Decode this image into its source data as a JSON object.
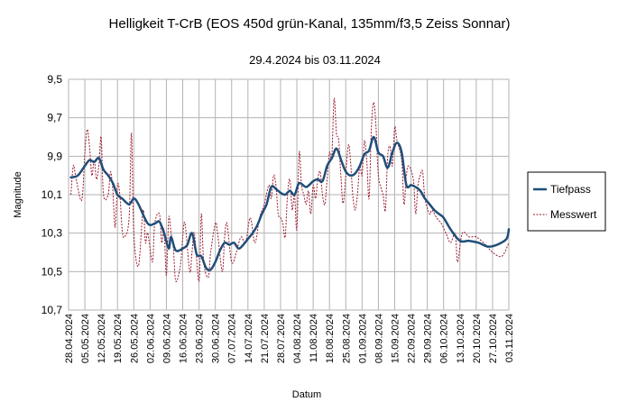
{
  "chart_data": {
    "type": "line",
    "title": "Helligkeit T-CrB (EOS 450d grün-Kanal, 135mm/f3,5 Zeiss Sonnar)",
    "subtitle": "29.4.2024 bis 03.11.2024",
    "xlabel": "Datum",
    "ylabel": "Magnitude",
    "y_reversed": true,
    "ylim": [
      9.5,
      10.7
    ],
    "y_ticks": [
      "9,5",
      "9,7",
      "9,9",
      "10,1",
      "10,3",
      "10,5",
      "10,7"
    ],
    "x_ticks": [
      "28.04.2024",
      "05.05.2024",
      "12.05.2024",
      "19.05.2024",
      "26.05.2024",
      "02.06.2024",
      "09.06.2024",
      "16.06.2024",
      "23.06.2024",
      "30.06.2024",
      "07.07.2024",
      "14.07.2024",
      "21.07.2024",
      "28.07.2024",
      "04.08.2024",
      "11.08.2024",
      "18.08.2024",
      "25.08.2024",
      "01.09.2024",
      "08.09.2024",
      "15.09.2024",
      "22.09.2024",
      "29.09.2024",
      "06.10.2024",
      "13.10.2024",
      "20.10.2024",
      "27.10.2024",
      "03.11.2024"
    ],
    "grid": true,
    "legend_position": "right",
    "series": [
      {
        "name": "Tiefpass",
        "color": "#1f4e79",
        "style": "solid",
        "x": [
          "2024-04-29",
          "2024-05-02",
          "2024-05-05",
          "2024-05-07",
          "2024-05-09",
          "2024-05-11",
          "2024-05-13",
          "2024-05-15",
          "2024-05-17",
          "2024-05-19",
          "2024-05-21",
          "2024-05-24",
          "2024-05-26",
          "2024-05-28",
          "2024-06-01",
          "2024-06-04",
          "2024-06-06",
          "2024-06-08",
          "2024-06-10",
          "2024-06-11",
          "2024-06-13",
          "2024-06-16",
          "2024-06-18",
          "2024-06-20",
          "2024-06-22",
          "2024-06-24",
          "2024-06-26",
          "2024-06-28",
          "2024-06-30",
          "2024-07-02",
          "2024-07-04",
          "2024-07-06",
          "2024-07-08",
          "2024-07-10",
          "2024-07-12",
          "2024-07-14",
          "2024-07-16",
          "2024-07-18",
          "2024-07-20",
          "2024-07-22",
          "2024-07-24",
          "2024-07-26",
          "2024-07-28",
          "2024-07-30",
          "2024-08-01",
          "2024-08-03",
          "2024-08-05",
          "2024-08-08",
          "2024-08-11",
          "2024-08-13",
          "2024-08-15",
          "2024-08-17",
          "2024-08-19",
          "2024-08-21",
          "2024-08-23",
          "2024-08-25",
          "2024-08-27",
          "2024-08-29",
          "2024-08-31",
          "2024-09-02",
          "2024-09-04",
          "2024-09-06",
          "2024-09-08",
          "2024-09-10",
          "2024-09-12",
          "2024-09-14",
          "2024-09-16",
          "2024-09-18",
          "2024-09-20",
          "2024-09-22",
          "2024-09-24",
          "2024-09-26",
          "2024-09-28",
          "2024-09-30",
          "2024-10-02",
          "2024-10-04",
          "2024-10-06",
          "2024-10-09",
          "2024-10-13",
          "2024-10-17",
          "2024-10-21",
          "2024-10-25",
          "2024-10-29",
          "2024-11-02",
          "2024-11-03"
        ],
        "y": [
          10.01,
          10.0,
          9.95,
          9.92,
          9.93,
          9.91,
          9.97,
          10.0,
          10.04,
          10.1,
          10.12,
          10.15,
          10.12,
          10.15,
          10.25,
          10.25,
          10.24,
          10.3,
          10.38,
          10.32,
          10.39,
          10.38,
          10.36,
          10.3,
          10.41,
          10.42,
          10.48,
          10.49,
          10.45,
          10.39,
          10.35,
          10.36,
          10.35,
          10.38,
          10.36,
          10.33,
          10.3,
          10.26,
          10.2,
          10.15,
          10.06,
          10.07,
          10.09,
          10.1,
          10.08,
          10.1,
          10.04,
          10.06,
          10.03,
          10.02,
          10.03,
          9.95,
          9.91,
          9.86,
          9.92,
          9.98,
          10.0,
          9.99,
          9.95,
          9.89,
          9.87,
          9.8,
          9.88,
          9.9,
          9.96,
          9.88,
          9.83,
          9.88,
          10.05,
          10.05,
          10.06,
          10.08,
          10.12,
          10.15,
          10.18,
          10.2,
          10.22,
          10.28,
          10.34,
          10.34,
          10.35,
          10.37,
          10.36,
          10.33,
          10.28
        ]
      },
      {
        "name": "Messwert",
        "color": "#9b1b30",
        "style": "dotted",
        "x": [
          "2024-04-29",
          "2024-04-30",
          "2024-05-01",
          "2024-05-03",
          "2024-05-04",
          "2024-05-05",
          "2024-05-06",
          "2024-05-07",
          "2024-05-08",
          "2024-05-09",
          "2024-05-10",
          "2024-05-11",
          "2024-05-12",
          "2024-05-13",
          "2024-05-15",
          "2024-05-16",
          "2024-05-17",
          "2024-05-18",
          "2024-05-19",
          "2024-05-20",
          "2024-05-21",
          "2024-05-22",
          "2024-05-24",
          "2024-05-25",
          "2024-05-26",
          "2024-05-28",
          "2024-05-30",
          "2024-05-31",
          "2024-06-01",
          "2024-06-03",
          "2024-06-04",
          "2024-06-06",
          "2024-06-07",
          "2024-06-08",
          "2024-06-09",
          "2024-06-10",
          "2024-06-11",
          "2024-06-12",
          "2024-06-13",
          "2024-06-15",
          "2024-06-16",
          "2024-06-17",
          "2024-06-19",
          "2024-06-20",
          "2024-06-21",
          "2024-06-23",
          "2024-06-24",
          "2024-06-25",
          "2024-06-27",
          "2024-06-28",
          "2024-06-30",
          "2024-07-01",
          "2024-07-03",
          "2024-07-04",
          "2024-07-05",
          "2024-07-07",
          "2024-07-09",
          "2024-07-11",
          "2024-07-13",
          "2024-07-15",
          "2024-07-17",
          "2024-07-19",
          "2024-07-21",
          "2024-07-23",
          "2024-07-24",
          "2024-07-25",
          "2024-07-26",
          "2024-07-27",
          "2024-07-28",
          "2024-07-29",
          "2024-07-30",
          "2024-07-31",
          "2024-08-01",
          "2024-08-02",
          "2024-08-03",
          "2024-08-04",
          "2024-08-05",
          "2024-08-06",
          "2024-08-07",
          "2024-08-08",
          "2024-08-09",
          "2024-08-10",
          "2024-08-11",
          "2024-08-12",
          "2024-08-13",
          "2024-08-14",
          "2024-08-15",
          "2024-08-16",
          "2024-08-17",
          "2024-08-18",
          "2024-08-19",
          "2024-08-20",
          "2024-08-21",
          "2024-08-22",
          "2024-08-23",
          "2024-08-24",
          "2024-08-26",
          "2024-08-27",
          "2024-08-28",
          "2024-08-29",
          "2024-08-30",
          "2024-08-31",
          "2024-09-01",
          "2024-09-02",
          "2024-09-03",
          "2024-09-04",
          "2024-09-05",
          "2024-09-06",
          "2024-09-07",
          "2024-09-08",
          "2024-09-10",
          "2024-09-11",
          "2024-09-12",
          "2024-09-13",
          "2024-09-14",
          "2024-09-15",
          "2024-09-16",
          "2024-09-18",
          "2024-09-19",
          "2024-09-20",
          "2024-09-21",
          "2024-09-23",
          "2024-09-24",
          "2024-09-25",
          "2024-09-26",
          "2024-09-27",
          "2024-09-28",
          "2024-09-30",
          "2024-10-01",
          "2024-10-03",
          "2024-10-05",
          "2024-10-07",
          "2024-10-09",
          "2024-10-11",
          "2024-10-12",
          "2024-10-14",
          "2024-10-17",
          "2024-10-20",
          "2024-10-24",
          "2024-10-27",
          "2024-10-31",
          "2024-11-03"
        ],
        "y": [
          10.1,
          9.95,
          10.0,
          10.12,
          10.1,
          9.88,
          9.76,
          9.85,
          10.0,
          9.92,
          10.02,
          9.95,
          9.8,
          10.1,
          10.1,
          9.98,
          10.08,
          10.27,
          10.05,
          10.1,
          10.28,
          10.32,
          10.22,
          9.78,
          10.3,
          10.47,
          10.18,
          10.35,
          10.3,
          10.45,
          10.25,
          10.2,
          10.35,
          10.28,
          10.52,
          10.22,
          10.3,
          10.38,
          10.55,
          10.47,
          10.32,
          10.25,
          10.5,
          10.4,
          10.3,
          10.55,
          10.2,
          10.45,
          10.53,
          10.4,
          10.25,
          10.3,
          10.5,
          10.32,
          10.25,
          10.45,
          10.4,
          10.32,
          10.35,
          10.22,
          10.35,
          10.22,
          10.15,
          10.05,
          10.12,
          10.0,
          10.05,
          10.2,
          10.22,
          10.25,
          10.32,
          10.1,
          10.02,
          10.18,
          10.1,
          10.28,
          9.88,
          10.05,
          10.1,
          10.15,
          10.08,
          10.2,
          10.05,
          10.12,
          10.02,
          9.98,
          10.1,
          10.15,
          10.02,
          9.88,
          9.9,
          9.6,
          9.78,
          9.82,
          10.02,
          10.14,
          9.85,
          9.92,
          10.1,
          10.18,
          10.1,
          9.95,
          10.0,
          9.82,
          9.92,
          10.12,
          9.75,
          9.62,
          9.75,
          10.0,
          10.1,
          10.18,
          9.9,
          9.85,
          9.95,
          9.75,
          9.82,
          9.92,
          10.15,
          10.0,
          9.95,
          10.02,
          10.2,
          10.05,
          10.0,
          9.98,
          10.12,
          10.2,
          10.18,
          10.22,
          10.25,
          10.3,
          10.35,
          10.3,
          10.45,
          10.3,
          10.32,
          10.32,
          10.36,
          10.4,
          10.42,
          10.35
        ]
      }
    ]
  }
}
